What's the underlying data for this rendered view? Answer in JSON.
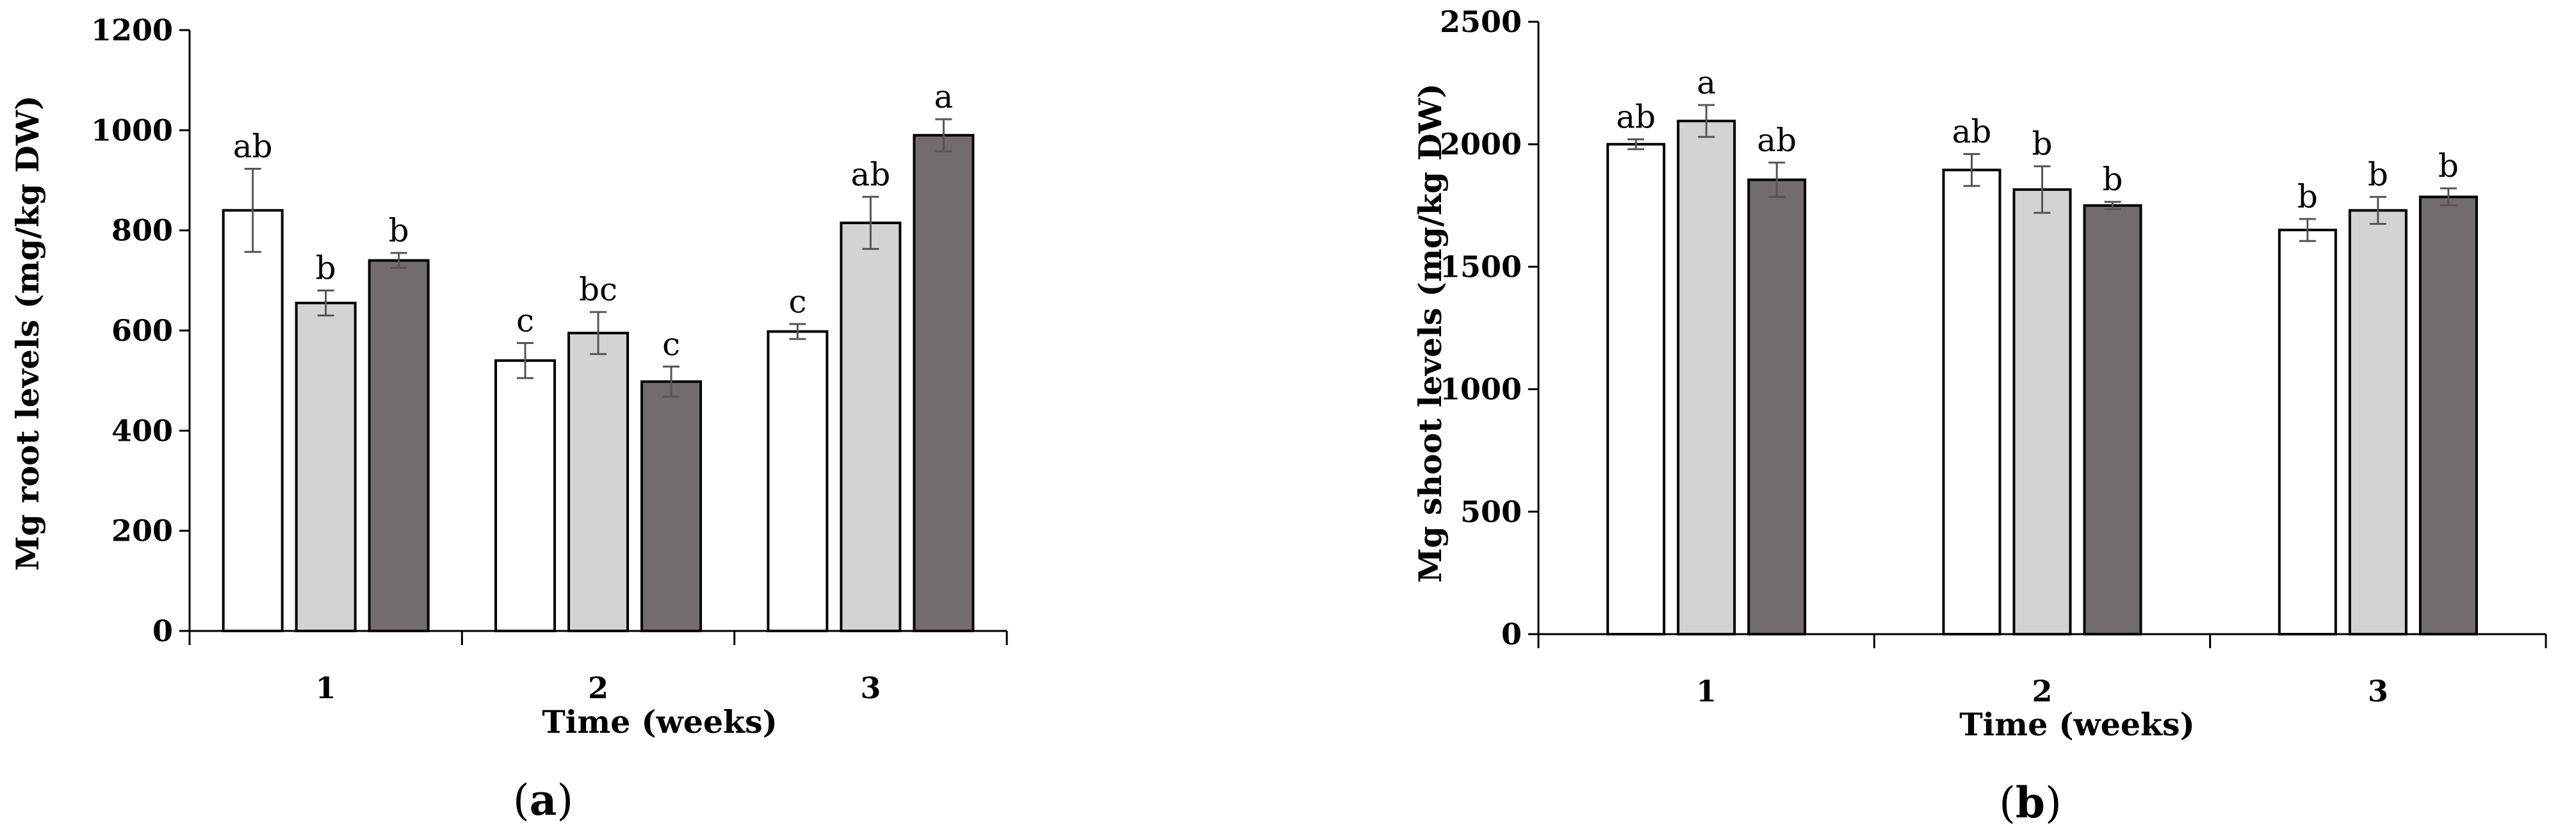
{
  "chart_data": [
    {
      "type": "bar",
      "ylabel": "Mg root levels (mg/kg DW)",
      "xlabel": "Time (weeks)",
      "categories": [
        "1",
        "2",
        "3"
      ],
      "ylim": [
        0,
        1200
      ],
      "yticks": [
        "0",
        "200",
        "400",
        "600",
        "800",
        "1000",
        "1200"
      ],
      "panel_open": "(",
      "panel_letter": "a",
      "panel_close": ")",
      "series": [
        {
          "color": "#ffffff",
          "values": [
            840,
            540,
            598
          ],
          "errors": [
            83,
            35,
            15
          ],
          "labels": [
            "ab",
            "c",
            "c"
          ]
        },
        {
          "color": "#d3d3d3",
          "values": [
            655,
            595,
            815
          ],
          "errors": [
            25,
            42,
            52
          ],
          "labels": [
            "b",
            "bc",
            "ab"
          ]
        },
        {
          "color": "#726d6c",
          "values": [
            740,
            498,
            990
          ],
          "errors": [
            15,
            30,
            32
          ],
          "labels": [
            "b",
            "c",
            "a"
          ]
        }
      ]
    },
    {
      "type": "bar",
      "ylabel": "Mg shoot levels (mg/kg DW)",
      "xlabel": "Time (weeks)",
      "categories": [
        "1",
        "2",
        "3"
      ],
      "ylim": [
        0,
        2500
      ],
      "yticks": [
        "0",
        "500",
        "1000",
        "1500",
        "2000",
        "2500"
      ],
      "panel_open": "(",
      "panel_letter": "b",
      "panel_close": ")",
      "series": [
        {
          "color": "#ffffff",
          "values": [
            2000,
            1895,
            1650
          ],
          "errors": [
            20,
            65,
            45
          ],
          "labels": [
            "ab",
            "ab",
            "b"
          ]
        },
        {
          "color": "#d3d3d3",
          "values": [
            2095,
            1815,
            1730
          ],
          "errors": [
            65,
            95,
            55
          ],
          "labels": [
            "a",
            "b",
            "b"
          ]
        },
        {
          "color": "#726d6c",
          "values": [
            1855,
            1750,
            1785
          ],
          "errors": [
            70,
            15,
            35
          ],
          "labels": [
            "ab",
            "b",
            "b"
          ]
        }
      ]
    }
  ]
}
